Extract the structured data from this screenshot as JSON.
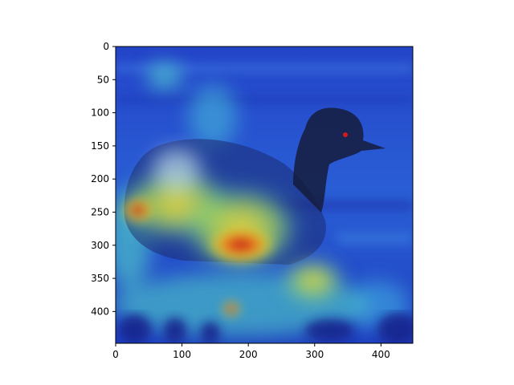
{
  "figure": {
    "image": {
      "subject": "grebe duck on water",
      "overlay": "heatmap",
      "colormap": "jet",
      "hotspot_color": "#d7191c",
      "cool_color": "#1f3fbf"
    }
  },
  "chart_data": {
    "type": "heatmap",
    "title": "",
    "xlabel": "",
    "ylabel": "",
    "xlim": [
      0,
      448
    ],
    "ylim": [
      448,
      0
    ],
    "x_ticks": [
      "0",
      "100",
      "200",
      "300",
      "400"
    ],
    "y_ticks": [
      "0",
      "50",
      "100",
      "150",
      "200",
      "250",
      "300",
      "350",
      "400"
    ],
    "x_tick_values": [
      0,
      100,
      200,
      300,
      400
    ],
    "y_tick_values": [
      0,
      50,
      100,
      150,
      200,
      250,
      300,
      350,
      400
    ],
    "grid": false
  }
}
